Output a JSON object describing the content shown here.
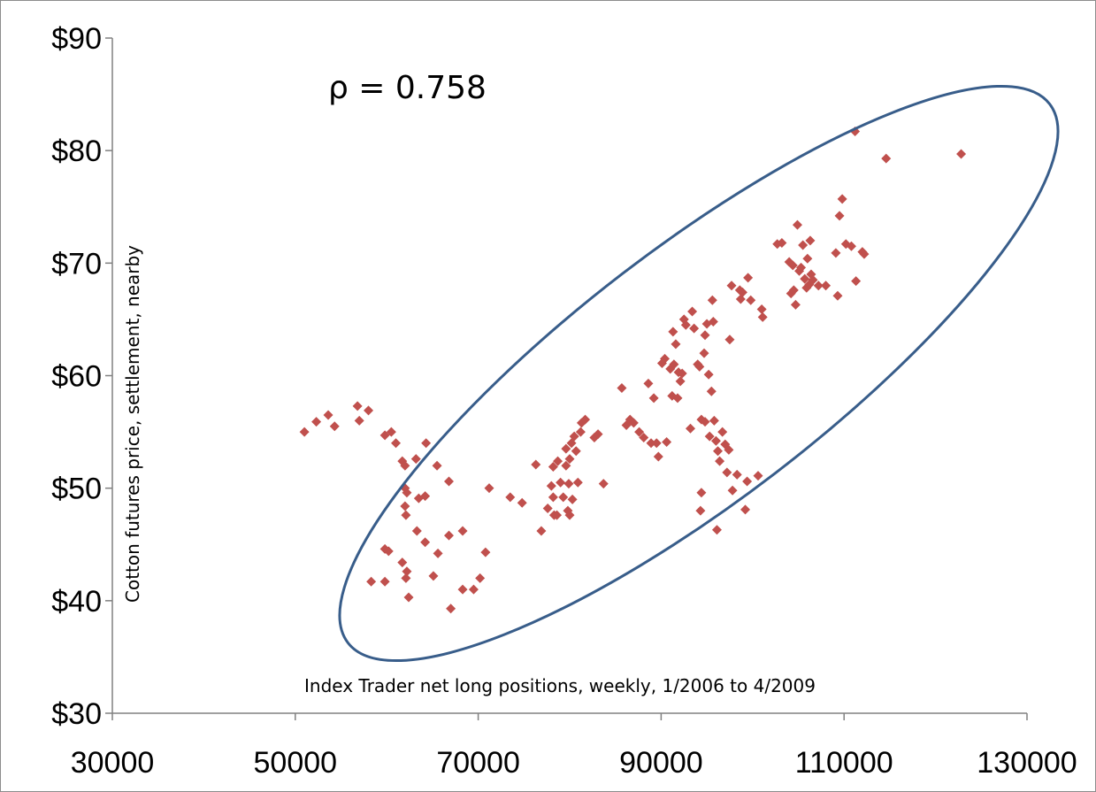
{
  "chart_data": {
    "type": "scatter",
    "title": "",
    "xlabel": "",
    "ylabel": "",
    "xlim": [
      30000,
      130000
    ],
    "ylim": [
      30,
      90
    ],
    "x_ticks": [
      30000,
      50000,
      70000,
      90000,
      110000,
      130000
    ],
    "x_tick_labels": [
      "30000",
      "50000",
      "70000",
      "90000",
      "110000",
      "130000"
    ],
    "y_ticks": [
      30,
      40,
      50,
      60,
      70,
      80,
      90
    ],
    "y_tick_labels": [
      "$30",
      "$40",
      "$50",
      "$60",
      "$70",
      "$80",
      "$90"
    ],
    "grid": false,
    "legend": "none",
    "marker": "diamond",
    "marker_color": "#c0504d",
    "ellipse_color": "#385d8a",
    "annotations": {
      "correlation": "ρ = 0.758",
      "y_description": "Cotton futures price, settlement, nearby",
      "x_description": "Index Trader net long positions, weekly, 1/2006 to 4/2009"
    },
    "ellipse": {
      "center": [
        82000,
        62.3
      ],
      "points_in_data_units": [
        [
          63000,
          35
        ],
        [
          125000,
          85.6
        ],
        [
          64000,
          49
        ],
        [
          112000,
          83
        ]
      ]
    },
    "series": [
      {
        "points": [
          [
            51000,
            55.0
          ],
          [
            52300,
            55.9
          ],
          [
            53600,
            56.5
          ],
          [
            54300,
            55.5
          ],
          [
            56800,
            57.3
          ],
          [
            57000,
            56.0
          ],
          [
            58000,
            56.9
          ],
          [
            59800,
            54.7
          ],
          [
            60500,
            55.0
          ],
          [
            61000,
            54.0
          ],
          [
            61700,
            52.4
          ],
          [
            62000,
            52.0
          ],
          [
            63200,
            52.6
          ],
          [
            64300,
            54.0
          ],
          [
            65500,
            52.0
          ],
          [
            62000,
            50.0
          ],
          [
            62200,
            49.6
          ],
          [
            63500,
            49.1
          ],
          [
            64200,
            49.3
          ],
          [
            66800,
            50.6
          ],
          [
            62000,
            48.4
          ],
          [
            62100,
            47.6
          ],
          [
            63300,
            46.2
          ],
          [
            64200,
            45.2
          ],
          [
            65600,
            44.2
          ],
          [
            66800,
            45.8
          ],
          [
            68300,
            46.2
          ],
          [
            59800,
            44.6
          ],
          [
            60200,
            44.4
          ],
          [
            61700,
            43.4
          ],
          [
            62200,
            42.6
          ],
          [
            62100,
            42.0
          ],
          [
            65100,
            42.2
          ],
          [
            58300,
            41.7
          ],
          [
            59800,
            41.7
          ],
          [
            62400,
            40.3
          ],
          [
            67000,
            39.3
          ],
          [
            68300,
            41.0
          ],
          [
            69500,
            41.0
          ],
          [
            70200,
            42.0
          ],
          [
            70800,
            44.3
          ],
          [
            71200,
            50.0
          ],
          [
            73500,
            49.2
          ],
          [
            74800,
            48.7
          ],
          [
            76300,
            52.1
          ],
          [
            76900,
            46.2
          ],
          [
            77600,
            48.2
          ],
          [
            78000,
            50.2
          ],
          [
            78200,
            51.9
          ],
          [
            78200,
            49.2
          ],
          [
            78300,
            47.6
          ],
          [
            78600,
            47.6
          ],
          [
            78700,
            52.4
          ],
          [
            79000,
            50.5
          ],
          [
            79300,
            49.2
          ],
          [
            79600,
            52.0
          ],
          [
            79600,
            53.5
          ],
          [
            79800,
            48.0
          ],
          [
            79900,
            50.4
          ],
          [
            80000,
            47.6
          ],
          [
            80000,
            52.6
          ],
          [
            80200,
            54.0
          ],
          [
            80300,
            49.0
          ],
          [
            80500,
            54.6
          ],
          [
            80700,
            53.3
          ],
          [
            80900,
            50.5
          ],
          [
            81200,
            55.0
          ],
          [
            81300,
            55.8
          ],
          [
            81700,
            56.1
          ],
          [
            82700,
            54.5
          ],
          [
            83100,
            54.8
          ],
          [
            83700,
            50.4
          ],
          [
            85700,
            58.9
          ],
          [
            86200,
            55.6
          ],
          [
            86600,
            56.1
          ],
          [
            87000,
            55.8
          ],
          [
            87600,
            55.0
          ],
          [
            88100,
            54.5
          ],
          [
            88600,
            59.3
          ],
          [
            88900,
            54.0
          ],
          [
            89200,
            58.0
          ],
          [
            89500,
            54.0
          ],
          [
            89700,
            52.8
          ],
          [
            90100,
            61.1
          ],
          [
            90400,
            61.5
          ],
          [
            90600,
            54.1
          ],
          [
            91000,
            60.6
          ],
          [
            91200,
            58.2
          ],
          [
            91300,
            63.9
          ],
          [
            91400,
            61.0
          ],
          [
            91600,
            62.8
          ],
          [
            91800,
            58.0
          ],
          [
            91900,
            60.3
          ],
          [
            92100,
            59.5
          ],
          [
            92300,
            60.2
          ],
          [
            92500,
            65.0
          ],
          [
            92700,
            64.5
          ],
          [
            93200,
            55.3
          ],
          [
            93400,
            65.7
          ],
          [
            93600,
            64.2
          ],
          [
            94000,
            61.0
          ],
          [
            94200,
            60.8
          ],
          [
            94400,
            56.1
          ],
          [
            94700,
            62.0
          ],
          [
            94800,
            63.6
          ],
          [
            94800,
            55.9
          ],
          [
            95000,
            64.6
          ],
          [
            95200,
            60.1
          ],
          [
            95300,
            54.6
          ],
          [
            95500,
            58.6
          ],
          [
            95600,
            66.7
          ],
          [
            95700,
            64.8
          ],
          [
            95800,
            56.0
          ],
          [
            96000,
            54.2
          ],
          [
            96200,
            53.3
          ],
          [
            96400,
            52.4
          ],
          [
            96700,
            55.0
          ],
          [
            97000,
            53.9
          ],
          [
            97200,
            51.4
          ],
          [
            97400,
            53.4
          ],
          [
            97500,
            63.2
          ],
          [
            97700,
            68.0
          ],
          [
            97800,
            49.8
          ],
          [
            98300,
            51.2
          ],
          [
            98600,
            67.6
          ],
          [
            98700,
            66.8
          ],
          [
            98900,
            67.4
          ],
          [
            99200,
            48.1
          ],
          [
            99400,
            50.6
          ],
          [
            99500,
            68.7
          ],
          [
            99800,
            66.7
          ],
          [
            100600,
            51.1
          ],
          [
            101000,
            65.9
          ],
          [
            101100,
            65.2
          ],
          [
            94400,
            49.6
          ],
          [
            94300,
            48.0
          ],
          [
            96100,
            46.3
          ],
          [
            102700,
            71.7
          ],
          [
            103200,
            71.8
          ],
          [
            104000,
            70.1
          ],
          [
            104200,
            67.3
          ],
          [
            104400,
            69.8
          ],
          [
            104500,
            67.6
          ],
          [
            104700,
            66.3
          ],
          [
            104900,
            73.4
          ],
          [
            105100,
            69.3
          ],
          [
            105300,
            69.6
          ],
          [
            105500,
            71.6
          ],
          [
            105700,
            68.6
          ],
          [
            105900,
            67.8
          ],
          [
            106000,
            70.4
          ],
          [
            106200,
            68.1
          ],
          [
            106300,
            72.0
          ],
          [
            106400,
            69.0
          ],
          [
            106600,
            68.5
          ],
          [
            107200,
            68.0
          ],
          [
            108000,
            68.0
          ],
          [
            109100,
            70.9
          ],
          [
            109300,
            67.1
          ],
          [
            109500,
            74.2
          ],
          [
            109800,
            75.7
          ],
          [
            110200,
            71.7
          ],
          [
            110800,
            71.5
          ],
          [
            111300,
            68.4
          ],
          [
            112000,
            71.0
          ],
          [
            112200,
            70.8
          ],
          [
            111200,
            81.7
          ],
          [
            114600,
            79.3
          ],
          [
            122800,
            79.7
          ]
        ]
      }
    ]
  }
}
